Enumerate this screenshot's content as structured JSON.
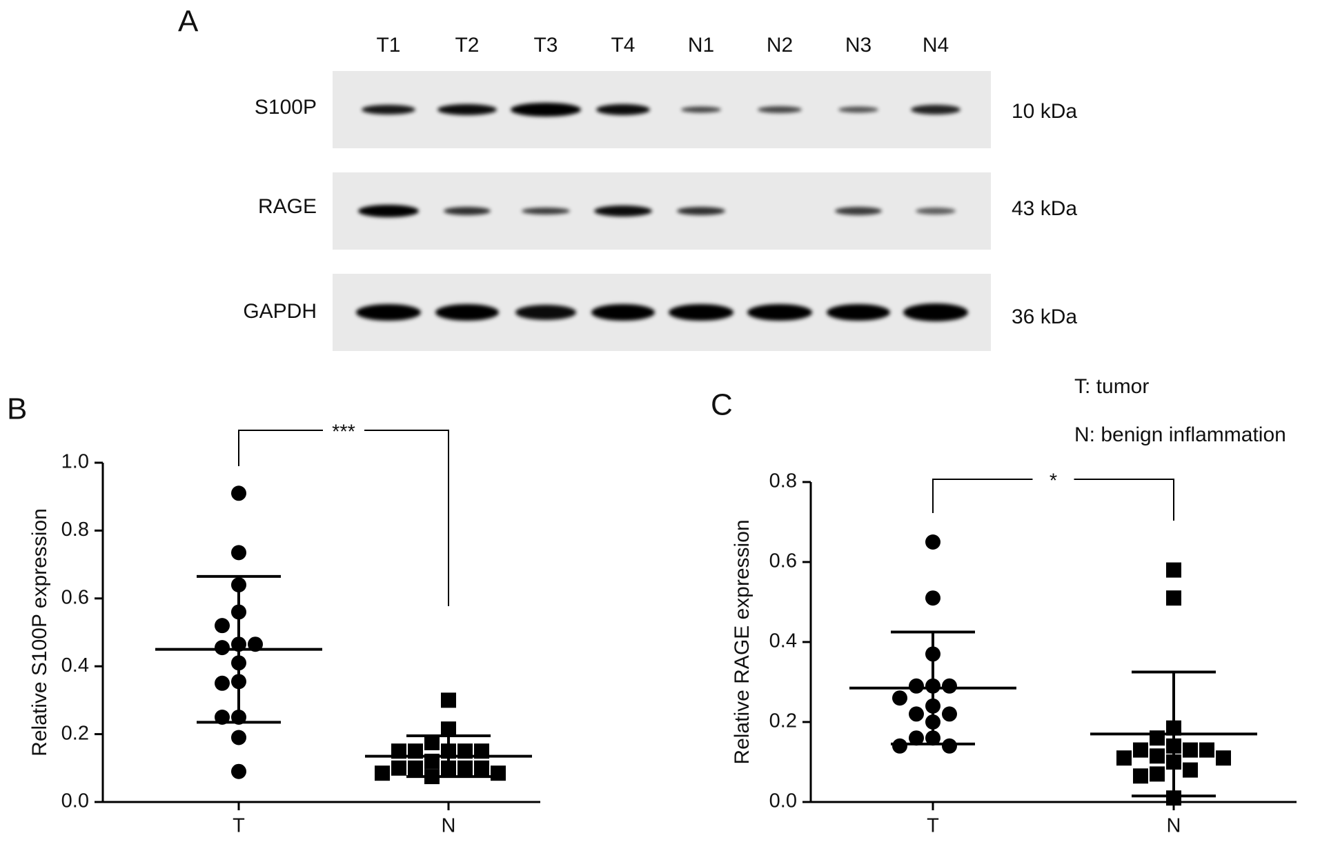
{
  "panel_a": {
    "letter": "A",
    "lanes": [
      "T1",
      "T2",
      "T3",
      "T4",
      "N1",
      "N2",
      "N3",
      "N4"
    ],
    "rows": [
      {
        "protein": "S100P",
        "size": "10 kDa"
      },
      {
        "protein": "RAGE",
        "size": "43 kDa"
      },
      {
        "protein": "GAPDH",
        "size": "36 kDa"
      }
    ]
  },
  "chart_data": [
    {
      "type": "dot",
      "panel": "B",
      "ylabel": "Relative S100P expression",
      "categories": [
        "T",
        "N"
      ],
      "markers": [
        "circle",
        "square"
      ],
      "color": "#000000",
      "values": [
        [
          0.91,
          0.735,
          0.64,
          0.56,
          0.52,
          0.465,
          0.455,
          0.465,
          0.41,
          0.355,
          0.35,
          0.25,
          0.25,
          0.19,
          0.09
        ],
        [
          0.3,
          0.215,
          0.175,
          0.15,
          0.15,
          0.15,
          0.15,
          0.15,
          0.12,
          0.1,
          0.1,
          0.1,
          0.1,
          0.1,
          0.085,
          0.085,
          0.075
        ]
      ],
      "means": [
        0.45,
        0.135
      ],
      "sds": [
        0.215,
        0.06
      ],
      "significance": "***",
      "ylim": [
        0,
        1.0
      ],
      "yticks": [
        {
          "value": 0,
          "label": "0.0"
        },
        0.2,
        0.4,
        0.6,
        0.8,
        {
          "value": 1.0,
          "label": "1.0"
        }
      ]
    },
    {
      "type": "dot",
      "panel": "C",
      "ylabel": "Relative RAGE expression",
      "categories": [
        "T",
        "N"
      ],
      "markers": [
        "circle",
        "square"
      ],
      "color": "#000000",
      "values": [
        [
          0.65,
          0.51,
          0.37,
          0.29,
          0.29,
          0.29,
          0.26,
          0.24,
          0.22,
          0.22,
          0.2,
          0.16,
          0.16,
          0.14,
          0.14
        ],
        [
          0.58,
          0.51,
          0.185,
          0.16,
          0.14,
          0.13,
          0.13,
          0.13,
          0.115,
          0.11,
          0.11,
          0.1,
          0.08,
          0.07,
          0.065,
          0.01
        ]
      ],
      "means": [
        0.285,
        0.17
      ],
      "sds": [
        0.14,
        0.155
      ],
      "significance": "*",
      "annotations": [
        "T: tumor",
        "N: benign inflammation"
      ],
      "ylim": [
        0,
        0.8
      ],
      "yticks": [
        {
          "value": 0,
          "label": "0.0"
        },
        0.2,
        0.4,
        0.6,
        0.8
      ]
    }
  ]
}
